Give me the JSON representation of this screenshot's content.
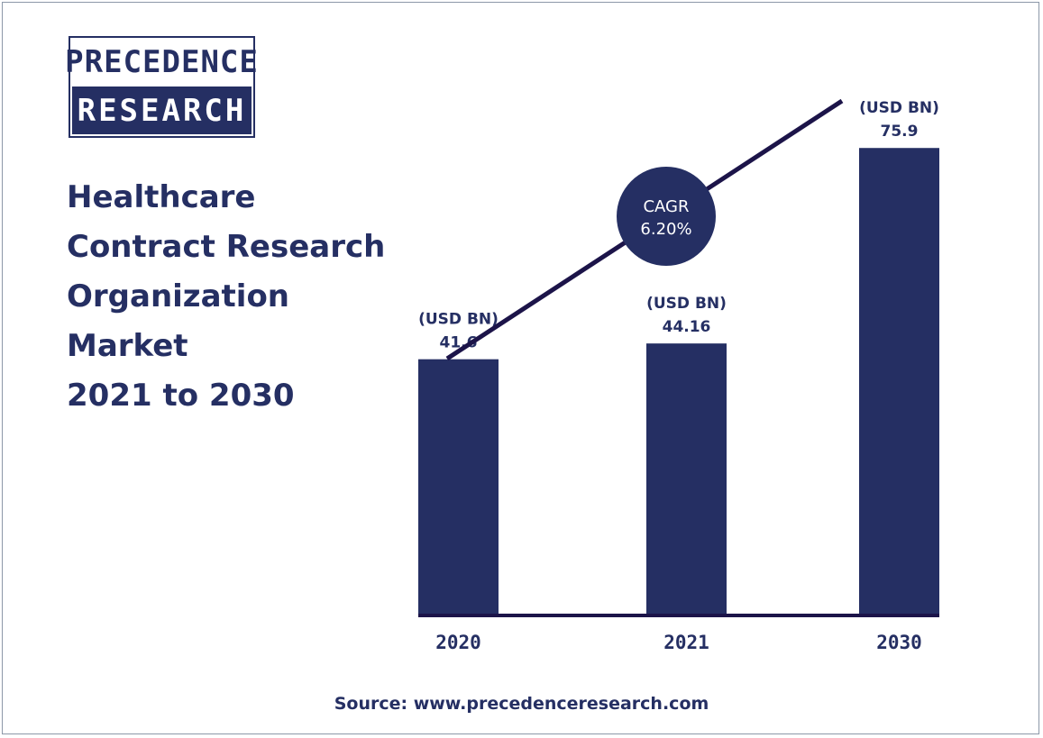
{
  "brand": {
    "logo_line1": "PRECEDENCE",
    "logo_line2": "RESEARCH"
  },
  "title_lines": [
    "Healthcare",
    "Contract Research",
    "Organization",
    "Market",
    "2021 to 2030"
  ],
  "cagr": {
    "label": "CAGR",
    "value": "6.20%"
  },
  "source": "Source: www.precedenceresearch.com",
  "colors": {
    "bar": "#252f63",
    "trend_line": "#1c1449",
    "text": "#252f63",
    "background": "#ffffff"
  },
  "chart_data": {
    "type": "bar",
    "categories": [
      "2020",
      "2021",
      "2030"
    ],
    "values": [
      41.6,
      44.16,
      75.9
    ],
    "value_labels": [
      "41.6",
      "44.16",
      "75.9"
    ],
    "unit_label": "(USD BN)",
    "ylim": [
      0,
      80
    ],
    "grid": false,
    "legend": "none"
  }
}
